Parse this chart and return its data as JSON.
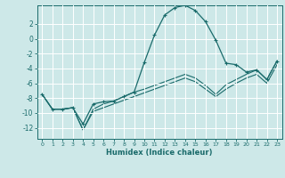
{
  "xlabel": "Humidex (Indice chaleur)",
  "bg_color": "#cde8e8",
  "grid_color": "#ffffff",
  "line_color": "#1a6b6b",
  "xlim": [
    -0.5,
    23.5
  ],
  "ylim": [
    -13.5,
    4.5
  ],
  "yticks": [
    2,
    0,
    -2,
    -4,
    -6,
    -8,
    -10,
    -12
  ],
  "xticks": [
    0,
    1,
    2,
    3,
    4,
    5,
    6,
    7,
    8,
    9,
    10,
    11,
    12,
    13,
    14,
    15,
    16,
    17,
    18,
    19,
    20,
    21,
    22,
    23
  ],
  "line1_x": [
    0,
    1,
    2,
    3,
    4,
    5,
    6,
    7,
    8,
    9,
    10,
    11,
    12,
    13,
    14,
    15,
    16,
    17,
    18,
    19,
    20,
    21,
    22,
    23
  ],
  "line1_y": [
    -7.5,
    -9.5,
    -9.5,
    -9.3,
    -11.5,
    -8.8,
    -8.5,
    -8.4,
    -7.8,
    -7.2,
    -3.2,
    0.5,
    3.2,
    4.2,
    4.5,
    3.8,
    2.3,
    -0.2,
    -3.3,
    -3.5,
    -4.5,
    -4.2,
    -5.5,
    -3.0
  ],
  "line2_x": [
    0,
    1,
    2,
    3,
    4,
    5,
    6,
    7,
    8,
    9,
    10,
    11,
    12,
    13,
    14,
    15,
    16,
    17,
    18,
    19,
    20,
    21,
    22,
    23
  ],
  "line2_y": [
    -7.5,
    -9.5,
    -9.5,
    -9.3,
    -12.3,
    -9.5,
    -8.8,
    -8.4,
    -7.8,
    -7.2,
    -6.8,
    -6.3,
    -5.8,
    -5.3,
    -4.8,
    -5.3,
    -6.3,
    -7.5,
    -6.2,
    -5.5,
    -4.8,
    -4.2,
    -5.5,
    -3.0
  ],
  "line3_x": [
    0,
    1,
    2,
    3,
    4,
    5,
    6,
    7,
    8,
    9,
    10,
    11,
    12,
    13,
    14,
    15,
    16,
    17,
    18,
    19,
    20,
    21,
    22,
    23
  ],
  "line3_y": [
    -7.5,
    -9.5,
    -9.5,
    -9.3,
    -12.3,
    -9.8,
    -9.3,
    -8.8,
    -8.3,
    -7.8,
    -7.3,
    -6.8,
    -6.3,
    -5.8,
    -5.3,
    -5.8,
    -6.8,
    -7.8,
    -6.8,
    -6.0,
    -5.3,
    -4.8,
    -6.0,
    -3.5
  ]
}
